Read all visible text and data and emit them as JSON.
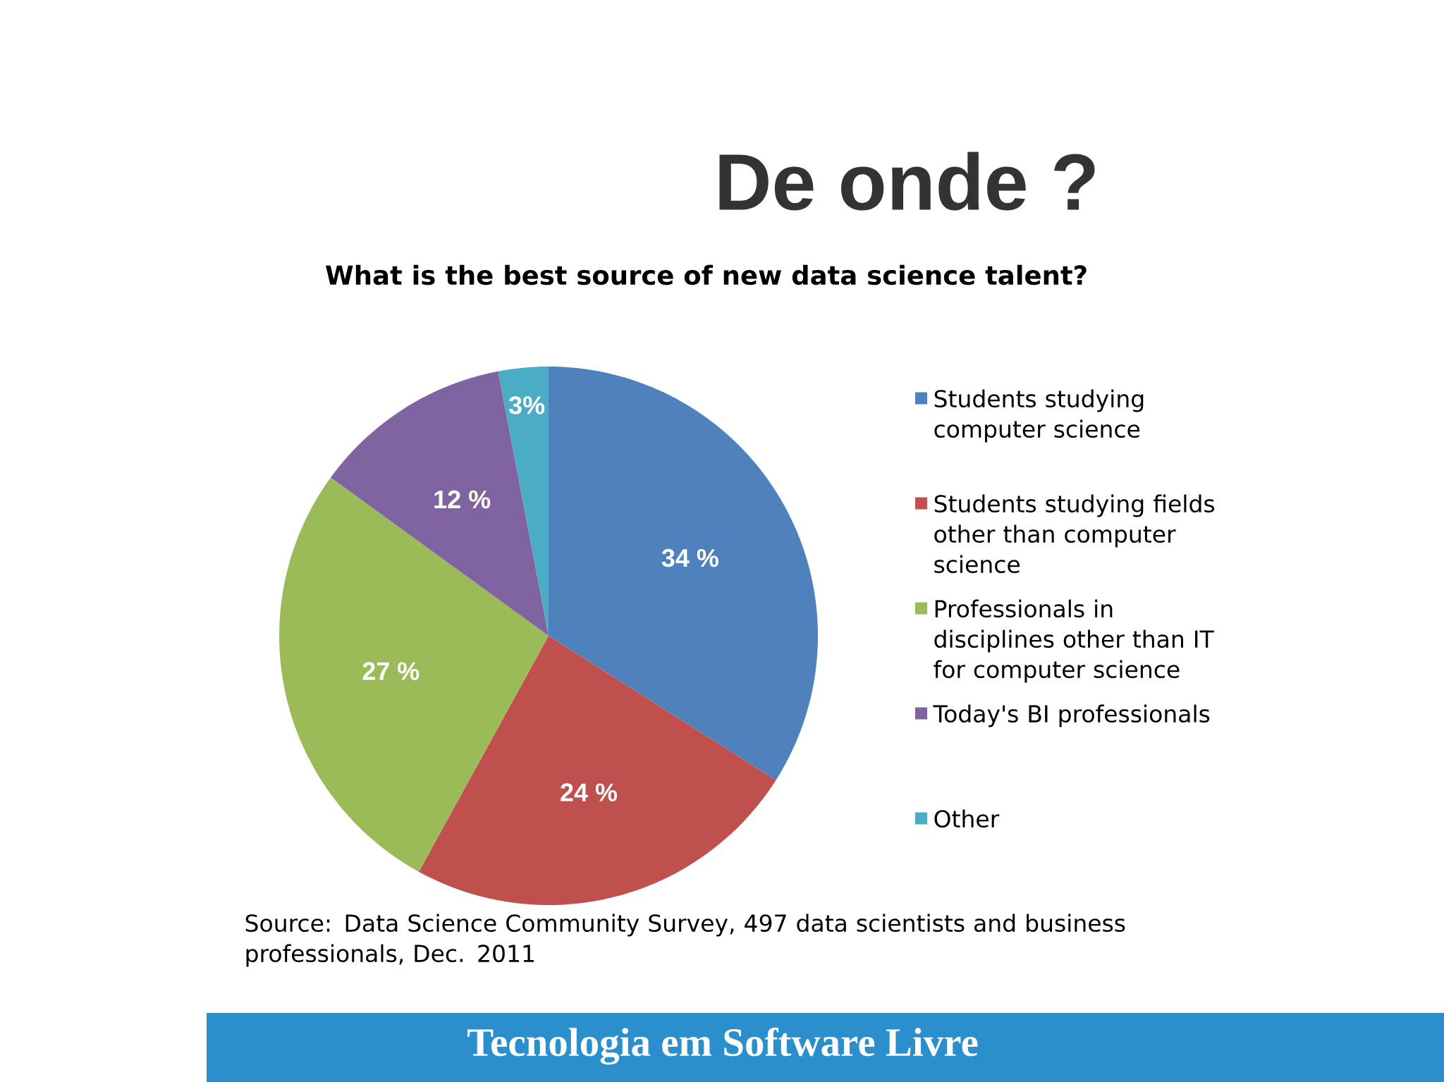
{
  "chart_data": {
    "type": "pie",
    "title": "De onde ?",
    "subtitle": "What is the best source of new data science talent?",
    "categories": [
      "Students studying computer science",
      "Students studying fields other than computer science",
      "Professionals in disciplines other than IT for computer science",
      "Today's BI professionals",
      "Other"
    ],
    "values": [
      34,
      24,
      27,
      12,
      3
    ],
    "colors": [
      "#4f81bd",
      "#c0504d",
      "#9bbb59",
      "#8064a2",
      "#4bacc6"
    ],
    "value_labels": [
      "34 %",
      "24 %",
      "27 %",
      "12 %",
      "3%"
    ],
    "legend": "right",
    "annotations": [
      "Source: Data Science Community Survey, 497 data scientists and business professionals, Dec. 2011",
      "Tecnologia em Software Livre"
    ]
  }
}
